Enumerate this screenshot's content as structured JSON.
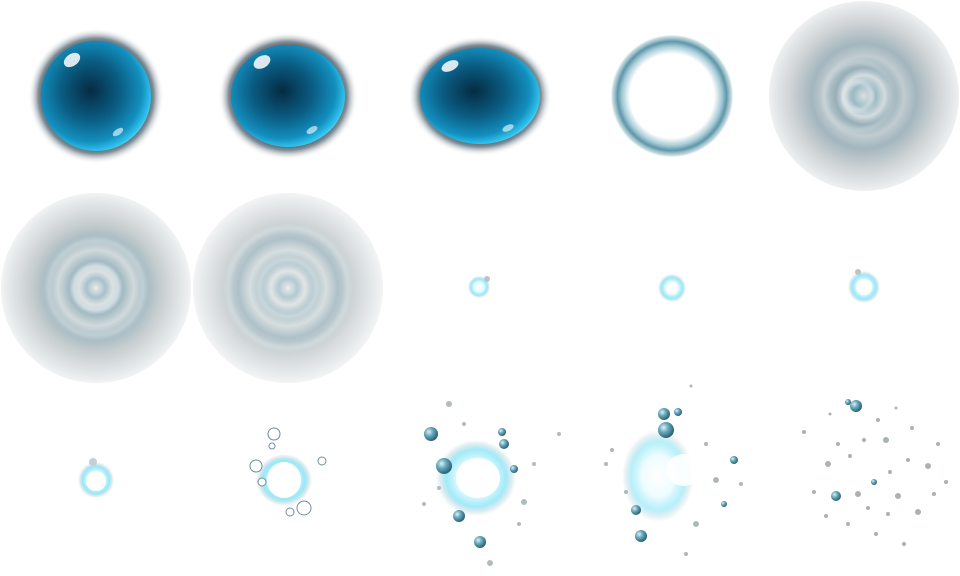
{
  "sprite_sheet": {
    "columns": 5,
    "rows": 3,
    "frame_count": 15,
    "colors": {
      "bubble_deep": "#063b57",
      "bubble_mid": "#0a6d97",
      "bubble_rim": "#2fc3ee",
      "halo": "#0b2030",
      "ring": "#5d96a8",
      "shock_gray": "#b4bcc0",
      "spark_core": "#ffffff",
      "spark_glow": "#7ee3f7",
      "droplet": "#4f8ea3",
      "particle_gray": "#a9b0b3"
    },
    "frames": [
      {
        "kind": "bubble",
        "icon": "water-bubble-icon"
      },
      {
        "kind": "bubble-squash",
        "icon": "water-bubble-icon"
      },
      {
        "kind": "bubble-squash",
        "icon": "water-bubble-icon"
      },
      {
        "kind": "ring",
        "icon": "water-ring-icon"
      },
      {
        "kind": "shockwave",
        "icon": "shockwave-icon"
      },
      {
        "kind": "shockwave",
        "icon": "shockwave-icon"
      },
      {
        "kind": "shockwave",
        "icon": "shockwave-icon"
      },
      {
        "kind": "spark",
        "icon": "spark-icon"
      },
      {
        "kind": "spark",
        "icon": "spark-icon"
      },
      {
        "kind": "spark",
        "icon": "spark-icon"
      },
      {
        "kind": "spark",
        "icon": "spark-icon"
      },
      {
        "kind": "splash",
        "icon": "splash-icon"
      },
      {
        "kind": "splash",
        "icon": "splash-icon"
      },
      {
        "kind": "splash",
        "icon": "splash-icon"
      },
      {
        "kind": "droplets",
        "icon": "droplets-icon"
      }
    ]
  }
}
